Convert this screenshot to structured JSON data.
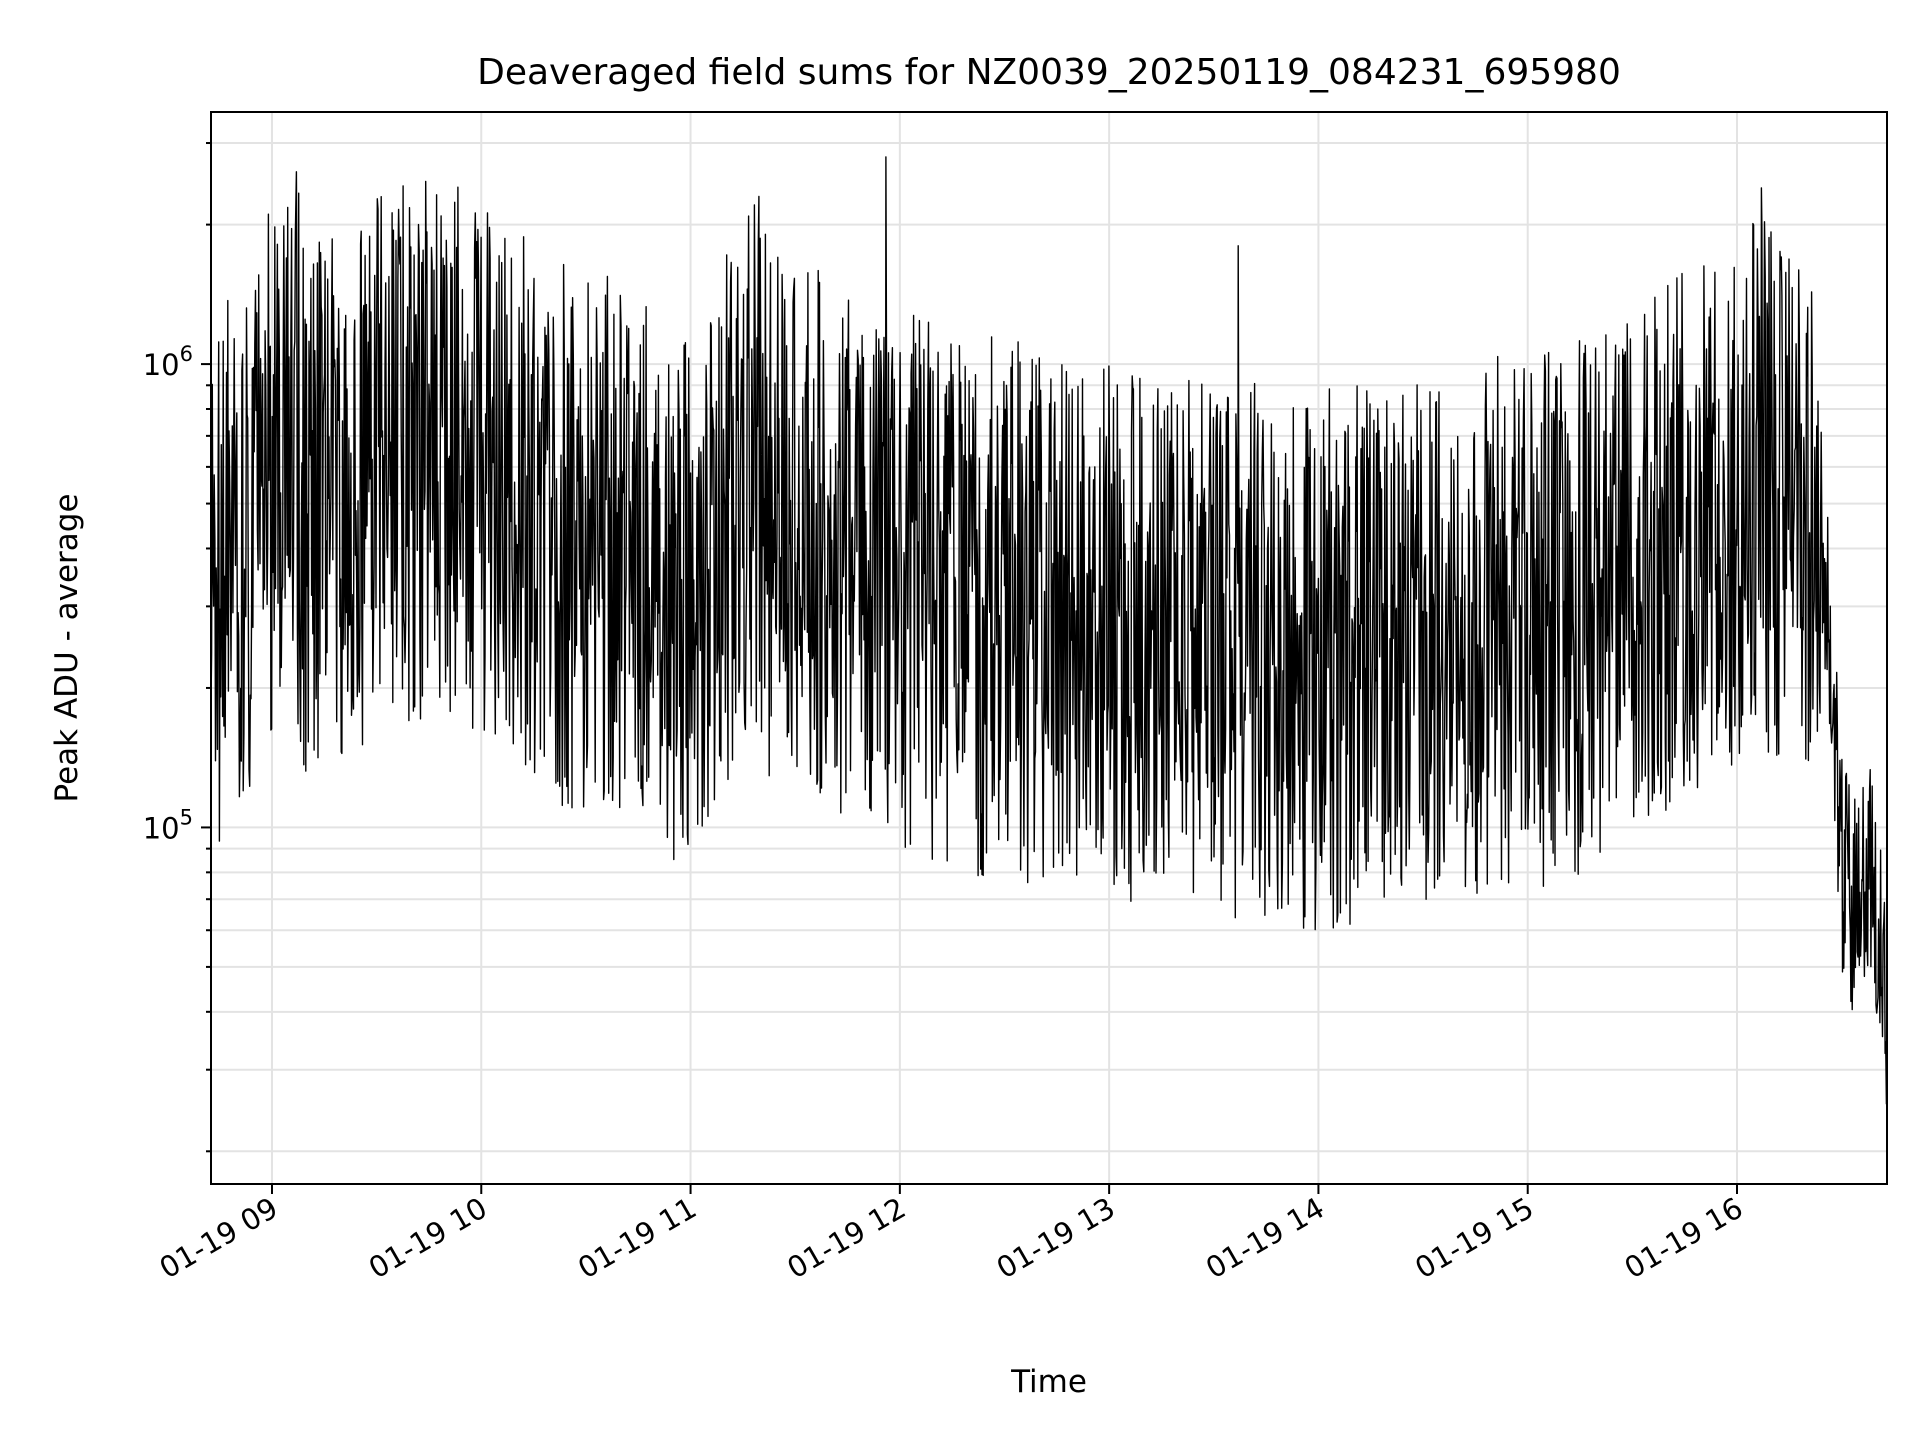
{
  "chart_data": {
    "type": "line",
    "title": "Deaveraged field sums for NZ0039_20250119_084231_695980",
    "xlabel": "Time",
    "ylabel": "Peak ADU - average",
    "yscale": "log",
    "xlim": [
      "2025-01-19T08:42:31",
      "2025-01-19T16:43:00"
    ],
    "ylim": [
      17000,
      3500000
    ],
    "grid": true,
    "line_color": "#000000",
    "x_ticks": [
      {
        "value": "2025-01-19T09:00:00",
        "label": "01-19 09"
      },
      {
        "value": "2025-01-19T10:00:00",
        "label": "01-19 10"
      },
      {
        "value": "2025-01-19T11:00:00",
        "label": "01-19 11"
      },
      {
        "value": "2025-01-19T12:00:00",
        "label": "01-19 12"
      },
      {
        "value": "2025-01-19T13:00:00",
        "label": "01-19 13"
      },
      {
        "value": "2025-01-19T14:00:00",
        "label": "01-19 14"
      },
      {
        "value": "2025-01-19T15:00:00",
        "label": "01-19 15"
      },
      {
        "value": "2025-01-19T16:00:00",
        "label": "01-19 16"
      }
    ],
    "y_major_ticks": [
      {
        "value": 100000,
        "label_base": "10",
        "label_exp": "5"
      },
      {
        "value": 1000000,
        "label_base": "10",
        "label_exp": "6"
      }
    ],
    "series": [
      {
        "x": [
          "2025-01-19T08:42:31",
          "2025-01-19T08:45:00",
          "2025-01-19T08:50:00",
          "2025-01-19T08:55:00",
          "2025-01-19T09:00:00",
          "2025-01-19T09:05:00",
          "2025-01-19T09:07:00",
          "2025-01-19T09:10:00",
          "2025-01-19T09:15:00",
          "2025-01-19T09:20:00",
          "2025-01-19T09:30:00",
          "2025-01-19T09:40:00",
          "2025-01-19T09:42:00",
          "2025-01-19T09:50:00",
          "2025-01-19T10:00:00",
          "2025-01-19T10:10:00",
          "2025-01-19T10:20:00",
          "2025-01-19T10:40:00",
          "2025-01-19T10:55:00",
          "2025-01-19T11:00:00",
          "2025-01-19T11:20:00",
          "2025-01-19T11:25:00",
          "2025-01-19T11:40:00",
          "2025-01-19T11:56:00",
          "2025-01-19T12:00:00",
          "2025-01-19T12:20:00",
          "2025-01-19T12:45:00",
          "2025-01-19T13:00:00",
          "2025-01-19T13:20:00",
          "2025-01-19T13:37:00",
          "2025-01-19T14:00:00",
          "2025-01-19T14:20:00",
          "2025-01-19T14:40:00",
          "2025-01-19T15:00:00",
          "2025-01-19T15:20:00",
          "2025-01-19T15:40:00",
          "2025-01-19T16:00:00",
          "2025-01-19T16:07:00",
          "2025-01-19T16:15:00",
          "2025-01-19T16:23:00",
          "2025-01-19T16:27:00",
          "2025-01-19T16:30:00",
          "2025-01-19T16:33:00",
          "2025-01-19T16:38:00",
          "2025-01-19T16:43:00"
        ],
        "y": [
          450000,
          400000,
          520000,
          420000,
          700000,
          750000,
          2600000,
          550000,
          600000,
          580000,
          700000,
          750000,
          2000000,
          800000,
          650000,
          600000,
          500000,
          450000,
          350000,
          400000,
          700000,
          1700000,
          450000,
          2800000,
          400000,
          350000,
          320000,
          300000,
          280000,
          1800000,
          260000,
          280000,
          300000,
          320000,
          360000,
          480000,
          600000,
          2400000,
          650000,
          550000,
          250000,
          90000,
          70000,
          85000,
          45000
        ]
      }
    ]
  }
}
